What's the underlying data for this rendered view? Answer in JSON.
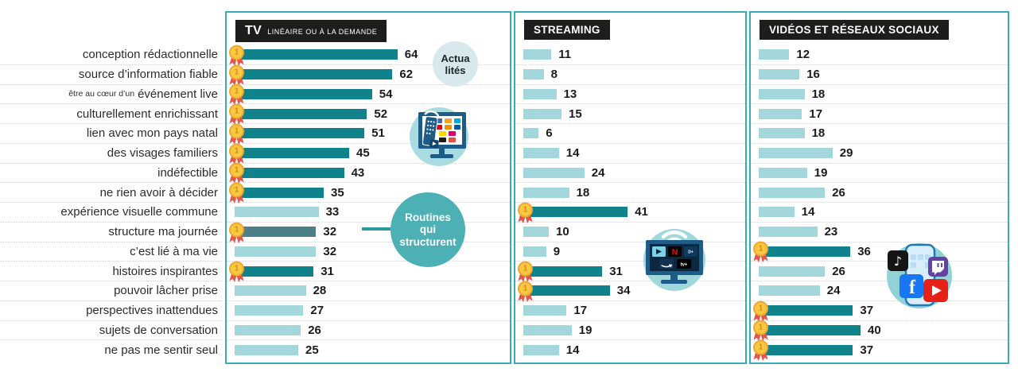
{
  "panels": [
    {
      "title_main": "TV",
      "title_sub": "LINÉAIRE OU À LA DEMANDE"
    },
    {
      "title_main": "STREAMING",
      "title_sub": ""
    },
    {
      "title_main": "VIDÉOS ET RÉSEAUX SOCIAUX",
      "title_sub": ""
    }
  ],
  "chart_data": {
    "type": "bar",
    "orientation": "horizontal",
    "value_range": [
      0,
      64
    ],
    "grid": "dotted-row-separators",
    "legend_position": "panel-headers",
    "categories": [
      "conception rédactionnelle",
      "source d’information fiable",
      "être au cœur d’un événement live",
      "culturellement enrichissant",
      "lien avec mon pays natal",
      "des visages familiers",
      "indéfectible",
      "ne rien avoir à décider",
      "expérience visuelle commune",
      "structure ma journée",
      "c’est lié à ma vie",
      "histoires inspirantes",
      "pouvoir lâcher prise",
      "perspectives inattendues",
      "sujets de conversation",
      "ne pas me sentir seul"
    ],
    "label_variants": {
      "2": {
        "small": "être au cœur d’un",
        "normal": "événement live"
      }
    },
    "series": [
      {
        "name": "TV linéaire ou à la demande",
        "values": [
          64,
          62,
          54,
          52,
          51,
          45,
          43,
          35,
          33,
          32,
          32,
          31,
          28,
          27,
          26,
          25
        ],
        "medals": [
          1,
          1,
          1,
          1,
          1,
          1,
          1,
          1,
          0,
          1,
          0,
          1,
          0,
          0,
          0,
          0
        ],
        "special": 9
      },
      {
        "name": "Streaming",
        "values": [
          11,
          8,
          13,
          15,
          6,
          14,
          24,
          18,
          41,
          10,
          9,
          31,
          34,
          17,
          19,
          14
        ],
        "medals": [
          0,
          0,
          0,
          0,
          0,
          0,
          0,
          0,
          1,
          0,
          0,
          1,
          1,
          0,
          0,
          0
        ]
      },
      {
        "name": "Vidéos et réseaux sociaux",
        "values": [
          12,
          16,
          18,
          17,
          18,
          29,
          19,
          26,
          14,
          23,
          36,
          26,
          24,
          37,
          40,
          37
        ],
        "medals": [
          0,
          0,
          0,
          0,
          0,
          0,
          0,
          0,
          0,
          0,
          1,
          0,
          0,
          1,
          1,
          1
        ]
      }
    ],
    "annotations": [
      {
        "text": "Actualités",
        "style": "light-circle"
      },
      {
        "text": "Routines qui structurent",
        "style": "teal-circle",
        "points_to": "structure ma journée (TV, 32)"
      }
    ]
  },
  "annotation_bubbles": {
    "actualites": {
      "line1": "Actua",
      "line2": "lités"
    },
    "routines": {
      "line1": "Routines",
      "line2": "qui",
      "line3": "structurent"
    }
  },
  "icons": {
    "medal": "first-place-medal-icon",
    "tv_panel": "tv-with-remote-illustration",
    "streaming_panel": "smart-tv-streaming-apps-illustration",
    "social_panel": "smartphone-social-apps-illustration"
  },
  "colors": {
    "bar_light": "#a3d7db",
    "bar_dark": "#0f828c",
    "bar_special": "#4d7f89",
    "panel_border": "#3aacb6",
    "header_bg": "#1d1d1b",
    "annotation_teal": "#4cb0b4",
    "annotation_light": "#d7e9ed",
    "medal_gold": "#f7c844",
    "medal_ribbon": "#e4564e"
  }
}
